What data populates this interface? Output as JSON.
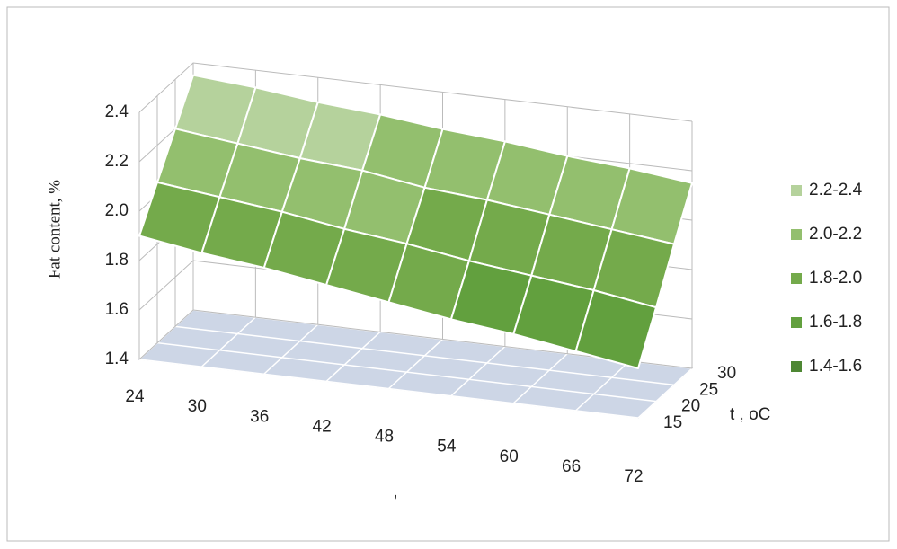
{
  "chart_data": {
    "type": "surface",
    "z_axis_title": "Fat content, %",
    "x_axis_title": ",",
    "depth_axis_title": "t , oC",
    "categories": [
      "24",
      "30",
      "36",
      "42",
      "48",
      "54",
      "60",
      "66",
      "72"
    ],
    "depth_categories": [
      "15",
      "20",
      "25",
      "30"
    ],
    "values": [
      [
        1.9,
        1.86,
        1.83,
        1.79,
        1.75,
        1.71,
        1.68,
        1.64,
        1.6
      ],
      [
        2.05,
        2.02,
        1.99,
        1.95,
        1.92,
        1.88,
        1.85,
        1.82,
        1.78
      ],
      [
        2.2,
        2.17,
        2.14,
        2.12,
        2.08,
        2.06,
        2.03,
        2.0,
        1.97
      ],
      [
        2.35,
        2.33,
        2.3,
        2.28,
        2.25,
        2.23,
        2.2,
        2.18,
        2.15
      ]
    ],
    "zlim": [
      1.4,
      2.4
    ],
    "zticks": [
      1.4,
      1.6,
      1.8,
      {
        "value": 2.0,
        "label": "2.0"
      },
      2.2,
      2.4
    ],
    "bands": [
      {
        "label": "2.2-2.4",
        "min": 2.2,
        "max": 2.4,
        "color": "#b5d29c"
      },
      {
        "label": "2.0-2.2",
        "min": 2.0,
        "max": 2.2,
        "color": "#93bf6e"
      },
      {
        "label": "1.8-2.0",
        "min": 1.8,
        "max": 2.0,
        "color": "#74aa4b"
      },
      {
        "label": "1.6-1.8",
        "min": 1.6,
        "max": 1.8,
        "color": "#62a03e"
      },
      {
        "label": "1.4-1.6",
        "min": 1.4,
        "max": 1.6,
        "color": "#4e8733"
      }
    ],
    "grid": true
  }
}
